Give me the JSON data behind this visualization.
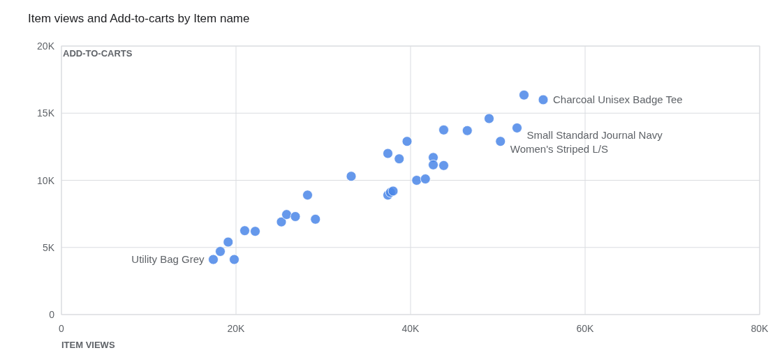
{
  "chart_data": {
    "type": "scatter",
    "title": "Item views and Add-to-carts by Item name",
    "xlabel": "ITEM VIEWS",
    "ylabel": "ADD-TO-CARTS",
    "x": [
      17400,
      18200,
      19100,
      19800,
      21000,
      22200,
      25200,
      25800,
      26800,
      28200,
      29100,
      33200,
      37400,
      37400,
      37700,
      38000,
      38700,
      39600,
      40700,
      41700,
      42600,
      42600,
      43800,
      43800,
      46500,
      49000,
      50300,
      52200,
      53000,
      55200
    ],
    "series": [
      {
        "color": "#4a86e8",
        "values": [
          4100,
          4700,
          5400,
          4100,
          6250,
          6200,
          6900,
          7450,
          7300,
          8900,
          7100,
          10300,
          12000,
          8900,
          9100,
          9200,
          11600,
          12900,
          10000,
          10100,
          11700,
          11150,
          11100,
          13750,
          13700,
          14600,
          12900,
          13900,
          16350,
          16000
        ]
      }
    ],
    "xlim": [
      0,
      80000
    ],
    "ylim": [
      0,
      20000
    ],
    "xticks": [
      {
        "value": 0,
        "label": "0"
      },
      {
        "value": 20000,
        "label": "20K"
      },
      {
        "value": 40000,
        "label": "40K"
      },
      {
        "value": 60000,
        "label": "60K"
      },
      {
        "value": 80000,
        "label": "80K"
      }
    ],
    "yticks": [
      {
        "value": 0,
        "label": "0"
      },
      {
        "value": 5000,
        "label": "5K"
      },
      {
        "value": 10000,
        "label": "10K"
      },
      {
        "value": 15000,
        "label": "15K"
      },
      {
        "value": 20000,
        "label": "20K"
      }
    ],
    "grid": true,
    "marker": "circle",
    "annotations": [
      {
        "text": "Charcoal Unisex Badge Tee",
        "x": 55200,
        "y": 16000
      },
      {
        "text": "Small Standard Journal Navy",
        "x": 52200,
        "y": 13900
      },
      {
        "text": "Women's Striped L/S",
        "x": 50300,
        "y": 12900
      },
      {
        "text": "Utility Bag Grey",
        "x": 17400,
        "y": 4100
      }
    ]
  }
}
